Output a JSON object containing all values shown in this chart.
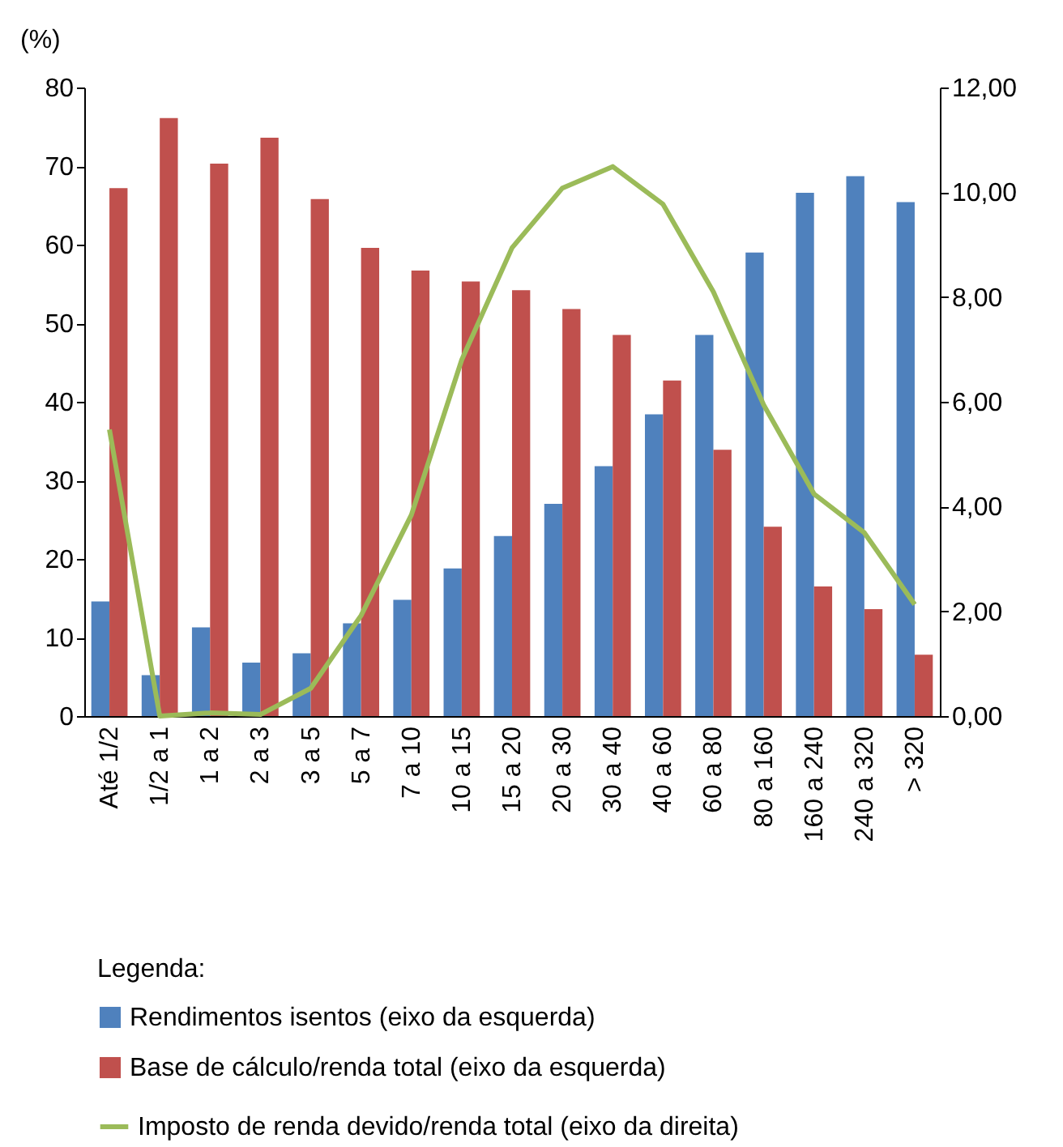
{
  "chart_data": {
    "type": "bar",
    "ylabel": "(%)",
    "legend_title": "Legenda:",
    "legend": "bottom",
    "grid": false,
    "categories": [
      "Até 1/2",
      "1/2 a 1",
      "1 a 2",
      "2 a 3",
      "3 a 5",
      "5 a 7",
      "7 a 10",
      "10 a 15",
      "15 a 20",
      "20 a 30",
      "30 a 40",
      "40 a 60",
      "60 a 80",
      "80 a 160",
      "160 a 240",
      "240 a 320",
      "> 320"
    ],
    "series": [
      {
        "name": "Rendimentos isentos (eixo da esquerda)",
        "color": "#4f81bd",
        "values": [
          14.6,
          5.2,
          11.3,
          6.8,
          8.0,
          11.8,
          14.8,
          18.8,
          22.9,
          27.0,
          31.8,
          38.4,
          48.5,
          59.0,
          66.6,
          68.7,
          65.4
        ]
      },
      {
        "name": "Base de cálculo/renda total (eixo da esquerda)",
        "color": "#c0504d",
        "values": [
          67.2,
          76.1,
          70.3,
          73.6,
          65.8,
          59.6,
          56.7,
          55.3,
          54.2,
          51.8,
          48.5,
          42.7,
          33.9,
          24.1,
          16.5,
          13.6,
          7.8
        ]
      },
      {
        "name": "Imposto de renda devido/renda total (eixo da direita)",
        "color": "#9bbb59",
        "type": "line",
        "axis": "y2",
        "values": [
          5.47,
          0.0,
          0.06,
          0.03,
          0.53,
          1.92,
          3.84,
          6.8,
          8.94,
          10.08,
          10.49,
          9.77,
          8.1,
          5.94,
          4.24,
          3.5,
          2.13
        ]
      }
    ],
    "ylim": [
      0,
      80
    ],
    "yticks": [
      0,
      10,
      20,
      30,
      40,
      50,
      60,
      70,
      80
    ],
    "y2lim": [
      0,
      12
    ],
    "y2ticks": [
      {
        "value": 0,
        "label": "0,00"
      },
      {
        "value": 2,
        "label": "2,00"
      },
      {
        "value": 4,
        "label": "4,00"
      },
      {
        "value": 6,
        "label": "6,00"
      },
      {
        "value": 8,
        "label": "8,00"
      },
      {
        "value": 10,
        "label": "10,00"
      },
      {
        "value": 12,
        "label": "12,00"
      }
    ]
  }
}
